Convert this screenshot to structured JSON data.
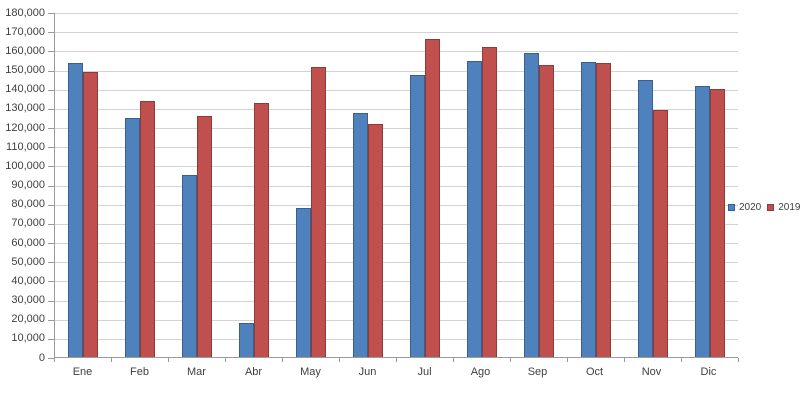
{
  "chart_data": {
    "type": "bar",
    "title": "",
    "xlabel": "",
    "ylabel": "",
    "categories": [
      "Ene",
      "Feb",
      "Mar",
      "Abr",
      "May",
      "Jun",
      "Jul",
      "Ago",
      "Sep",
      "Oct",
      "Nov",
      "Dic"
    ],
    "series": [
      {
        "name": "2020",
        "color": "#4f81bd",
        "border_color": "#38608f",
        "values": [
          153500,
          124500,
          95000,
          17500,
          77500,
          127500,
          147000,
          154500,
          158500,
          154000,
          144500,
          141500
        ]
      },
      {
        "name": "2019",
        "color": "#c0504d",
        "border_color": "#8e3a38",
        "values": [
          148500,
          133500,
          126000,
          132500,
          151500,
          121500,
          166000,
          161500,
          152500,
          153500,
          129000,
          140000
        ]
      }
    ],
    "ylim": [
      0,
      180000
    ],
    "y_step": 10000,
    "y_tick_labels": [
      "0",
      "10,000",
      "20,000",
      "30,000",
      "40,000",
      "50,000",
      "60,000",
      "70,000",
      "80,000",
      "90,000",
      "100,000",
      "110,000",
      "120,000",
      "130,000",
      "140,000",
      "150,000",
      "160,000",
      "170,000",
      "180,000"
    ],
    "grid": true,
    "legend_position": "right"
  },
  "colors": {
    "background": "#ffffff",
    "gridline": "#d3d3d3",
    "axis": "#9b9b9b",
    "text": "#3f3f3f"
  }
}
